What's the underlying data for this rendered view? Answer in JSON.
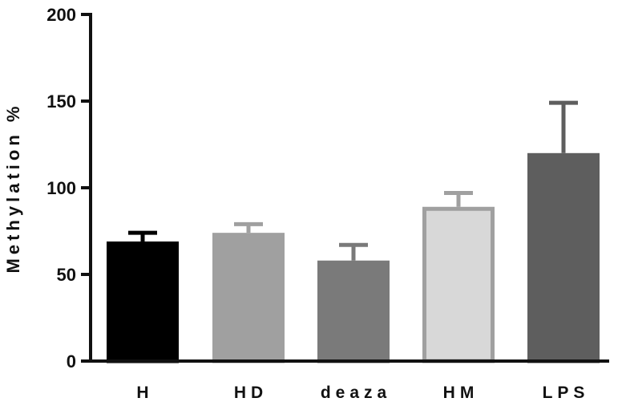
{
  "chart_data": {
    "type": "bar",
    "title": "",
    "xlabel": "",
    "ylabel": "Methylation %",
    "ylim": [
      0,
      200
    ],
    "yticks": [
      0,
      50,
      100,
      150,
      200
    ],
    "categories": [
      "H",
      "HD",
      "deaza",
      "HM",
      "LPS"
    ],
    "values": [
      69,
      74,
      58,
      89,
      120
    ],
    "errors": [
      5,
      5,
      9,
      8,
      29
    ],
    "colors": [
      "#000000",
      "#a0a0a0",
      "#7a7a7a",
      "#d8d8d8",
      "#5e5e5e"
    ],
    "error_colors": [
      "#000000",
      "#a0a0a0",
      "#7a7a7a",
      "#a0a0a0",
      "#5e5e5e"
    ],
    "bar_outlines": [
      "#000000",
      "#a0a0a0",
      "#7a7a7a",
      "#a0a0a0",
      "#5e5e5e"
    ],
    "grid": false,
    "legend": "none"
  }
}
